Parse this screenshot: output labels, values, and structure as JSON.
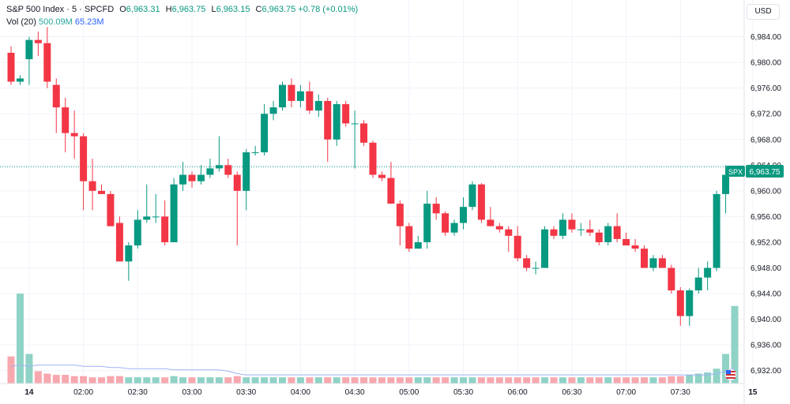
{
  "legend": {
    "symbol": "S&P 500 Index · 5 · SPCFD",
    "o_label": "O",
    "o_value": "6,963.31",
    "h_label": "H",
    "h_value": "6,963.75",
    "l_label": "L",
    "l_value": "6,963.15",
    "c_label": "C",
    "c_value": "6,963.75",
    "change": "+0.78 (+0.01%)",
    "vol_label": "Vol (20)",
    "vol_value": "500.09M",
    "vol_ma_value": "65.23M"
  },
  "currency": "USD",
  "colors": {
    "up": "#089981",
    "down": "#f23645",
    "vol_up": "#8fd2c6",
    "vol_down": "#f7a8ae",
    "vol_ma": "#9fb4f5",
    "grid": "#f0f3fa"
  },
  "chart_data": {
    "type": "candlestick",
    "interval": "5",
    "ylim": [
      6930,
      6988
    ],
    "y_ticks": [
      "6,932.00",
      "6,936.00",
      "6,940.00",
      "6,944.00",
      "6,948.00",
      "6,952.00",
      "6,956.00",
      "6,960.00",
      "6,964.00",
      "6,968.00",
      "6,972.00",
      "6,976.00",
      "6,980.00",
      "6,984.00"
    ],
    "x_ticks": [
      {
        "i": 2,
        "label": "14"
      },
      {
        "i": 8,
        "label": "02:00"
      },
      {
        "i": 14,
        "label": "02:30"
      },
      {
        "i": 20,
        "label": "03:00"
      },
      {
        "i": 26,
        "label": "03:30"
      },
      {
        "i": 32,
        "label": "04:00"
      },
      {
        "i": 38,
        "label": "04:30"
      },
      {
        "i": 44,
        "label": "05:00"
      },
      {
        "i": 50,
        "label": "05:30"
      },
      {
        "i": 56,
        "label": "06:00"
      },
      {
        "i": 62,
        "label": "06:30"
      },
      {
        "i": 68,
        "label": "07:00"
      },
      {
        "i": 74,
        "label": "07:30"
      },
      {
        "i": 82,
        "label": "15"
      }
    ],
    "last_price": {
      "symbol": "SPX",
      "value": "6,963.75",
      "price": 6963.75
    },
    "candles": [
      {
        "o": 6981.5,
        "h": 6982.5,
        "l": 6976.5,
        "c": 6977
      },
      {
        "o": 6977,
        "h": 6978,
        "l": 6976.5,
        "c": 6977.5
      },
      {
        "o": 6980.5,
        "h": 6984,
        "l": 6976.5,
        "c": 6983.5
      },
      {
        "o": 6983.5,
        "h": 6984.8,
        "l": 6981,
        "c": 6983
      },
      {
        "o": 6983,
        "h": 6985.5,
        "l": 6976,
        "c": 6977
      },
      {
        "o": 6976.5,
        "h": 6977.5,
        "l": 6969,
        "c": 6973
      },
      {
        "o": 6973,
        "h": 6974.5,
        "l": 6966,
        "c": 6969
      },
      {
        "o": 6969,
        "h": 6972.5,
        "l": 6965,
        "c": 6968.5
      },
      {
        "o": 6968.5,
        "h": 6969,
        "l": 6957,
        "c": 6961.5
      },
      {
        "o": 6961.5,
        "h": 6965,
        "l": 6957,
        "c": 6960
      },
      {
        "o": 6960,
        "h": 6961,
        "l": 6959.5,
        "c": 6959.5
      },
      {
        "o": 6959.5,
        "h": 6960,
        "l": 6954.5,
        "c": 6954.5
      },
      {
        "o": 6955,
        "h": 6956,
        "l": 6949,
        "c": 6949
      },
      {
        "o": 6949,
        "h": 6952,
        "l": 6946,
        "c": 6951.5
      },
      {
        "o": 6951.5,
        "h": 6957,
        "l": 6951,
        "c": 6955.5
      },
      {
        "o": 6955.5,
        "h": 6961,
        "l": 6955,
        "c": 6956
      },
      {
        "o": 6956,
        "h": 6959.5,
        "l": 6955,
        "c": 6956
      },
      {
        "o": 6956,
        "h": 6958.5,
        "l": 6951.5,
        "c": 6952
      },
      {
        "o": 6952,
        "h": 6962,
        "l": 6952,
        "c": 6961
      },
      {
        "o": 6961,
        "h": 6964.5,
        "l": 6960,
        "c": 6962.5
      },
      {
        "o": 6962.5,
        "h": 6963,
        "l": 6960.5,
        "c": 6961.5
      },
      {
        "o": 6961.5,
        "h": 6964,
        "l": 6961,
        "c": 6962.5
      },
      {
        "o": 6962.5,
        "h": 6965,
        "l": 6962,
        "c": 6963.5
      },
      {
        "o": 6963.5,
        "h": 6968.5,
        "l": 6963,
        "c": 6964
      },
      {
        "o": 6964,
        "h": 6965,
        "l": 6962,
        "c": 6962.5
      },
      {
        "o": 6962.5,
        "h": 6963,
        "l": 6951.5,
        "c": 6960
      },
      {
        "o": 6960,
        "h": 6966.5,
        "l": 6957,
        "c": 6966
      },
      {
        "o": 6966,
        "h": 6967,
        "l": 6965.5,
        "c": 6966
      },
      {
        "o": 6966,
        "h": 6973.5,
        "l": 6965.5,
        "c": 6972
      },
      {
        "o": 6972,
        "h": 6974,
        "l": 6971,
        "c": 6973
      },
      {
        "o": 6973,
        "h": 6977,
        "l": 6972.5,
        "c": 6976.5
      },
      {
        "o": 6976.5,
        "h": 6977.5,
        "l": 6973,
        "c": 6974
      },
      {
        "o": 6974,
        "h": 6976.5,
        "l": 6973,
        "c": 6975.5
      },
      {
        "o": 6975.5,
        "h": 6977,
        "l": 6972,
        "c": 6972.5
      },
      {
        "o": 6972.5,
        "h": 6975,
        "l": 6971.5,
        "c": 6974
      },
      {
        "o": 6974,
        "h": 6974.5,
        "l": 6964.5,
        "c": 6968
      },
      {
        "o": 6968,
        "h": 6974,
        "l": 6967,
        "c": 6973.5
      },
      {
        "o": 6973.5,
        "h": 6974,
        "l": 6970,
        "c": 6970.5
      },
      {
        "o": 6970.5,
        "h": 6972.5,
        "l": 6963.5,
        "c": 6970.5
      },
      {
        "o": 6970.5,
        "h": 6971,
        "l": 6967,
        "c": 6967.5
      },
      {
        "o": 6967.5,
        "h": 6967.8,
        "l": 6962,
        "c": 6962.5
      },
      {
        "o": 6962.5,
        "h": 6963,
        "l": 6961.5,
        "c": 6962
      },
      {
        "o": 6962,
        "h": 6964.5,
        "l": 6958,
        "c": 6958
      },
      {
        "o": 6958,
        "h": 6958.5,
        "l": 6951.5,
        "c": 6954.5
      },
      {
        "o": 6954.5,
        "h": 6955,
        "l": 6950.5,
        "c": 6951
      },
      {
        "o": 6951,
        "h": 6953,
        "l": 6951,
        "c": 6952
      },
      {
        "o": 6952,
        "h": 6960,
        "l": 6951,
        "c": 6958
      },
      {
        "o": 6958,
        "h": 6959,
        "l": 6955.5,
        "c": 6956.5
      },
      {
        "o": 6956.5,
        "h": 6956.8,
        "l": 6953,
        "c": 6953.5
      },
      {
        "o": 6953.5,
        "h": 6955.5,
        "l": 6953,
        "c": 6955
      },
      {
        "o": 6955,
        "h": 6959,
        "l": 6954,
        "c": 6957.5
      },
      {
        "o": 6957.5,
        "h": 6961.5,
        "l": 6957,
        "c": 6961
      },
      {
        "o": 6961,
        "h": 6961.2,
        "l": 6955,
        "c": 6955.5
      },
      {
        "o": 6955.5,
        "h": 6957.5,
        "l": 6954.5,
        "c": 6954.5
      },
      {
        "o": 6954.5,
        "h": 6955,
        "l": 6953.5,
        "c": 6954
      },
      {
        "o": 6954,
        "h": 6954.5,
        "l": 6950.5,
        "c": 6953
      },
      {
        "o": 6953,
        "h": 6954.5,
        "l": 6949,
        "c": 6949.5
      },
      {
        "o": 6949.5,
        "h": 6950,
        "l": 6947.5,
        "c": 6948
      },
      {
        "o": 6948,
        "h": 6949,
        "l": 6947,
        "c": 6948
      },
      {
        "o": 6948,
        "h": 6954.5,
        "l": 6948,
        "c": 6954
      },
      {
        "o": 6954,
        "h": 6954.5,
        "l": 6952.5,
        "c": 6953
      },
      {
        "o": 6953,
        "h": 6956.5,
        "l": 6952.5,
        "c": 6955.5
      },
      {
        "o": 6955.5,
        "h": 6956.5,
        "l": 6953.5,
        "c": 6954
      },
      {
        "o": 6954,
        "h": 6955,
        "l": 6953,
        "c": 6954
      },
      {
        "o": 6954,
        "h": 6955.5,
        "l": 6953,
        "c": 6953.5
      },
      {
        "o": 6953.5,
        "h": 6954,
        "l": 6951.5,
        "c": 6952
      },
      {
        "o": 6952,
        "h": 6955,
        "l": 6951.5,
        "c": 6954.5
      },
      {
        "o": 6954.5,
        "h": 6956.5,
        "l": 6952,
        "c": 6952.5
      },
      {
        "o": 6952.5,
        "h": 6953.5,
        "l": 6951.5,
        "c": 6951.5
      },
      {
        "o": 6951.5,
        "h": 6952.5,
        "l": 6950.5,
        "c": 6951
      },
      {
        "o": 6951,
        "h": 6951.5,
        "l": 6948,
        "c": 6948
      },
      {
        "o": 6948,
        "h": 6950,
        "l": 6947.5,
        "c": 6949.5
      },
      {
        "o": 6949.5,
        "h": 6950,
        "l": 6948,
        "c": 6948
      },
      {
        "o": 6948,
        "h": 6948.5,
        "l": 6944,
        "c": 6944.5
      },
      {
        "o": 6944.5,
        "h": 6945,
        "l": 6939,
        "c": 6940.5
      },
      {
        "o": 6940.5,
        "h": 6944.8,
        "l": 6939,
        "c": 6944.5
      },
      {
        "o": 6944.5,
        "h": 6948,
        "l": 6944,
        "c": 6946.5
      },
      {
        "o": 6946.5,
        "h": 6949,
        "l": 6944.5,
        "c": 6948
      },
      {
        "o": 6948,
        "h": 6960,
        "l": 6947.5,
        "c": 6959.5
      },
      {
        "o": 6959.5,
        "h": 6964,
        "l": 6956.5,
        "c": 6962.5
      },
      {
        "o": 6963.31,
        "h": 6963.75,
        "l": 6963.15,
        "c": 6963.75
      }
    ],
    "volume": [
      {
        "v": 0.22,
        "up": false
      },
      {
        "v": 0.73,
        "up": true
      },
      {
        "v": 0.24,
        "up": true
      },
      {
        "v": 0.1,
        "up": false
      },
      {
        "v": 0.08,
        "up": false
      },
      {
        "v": 0.07,
        "up": false
      },
      {
        "v": 0.07,
        "up": false
      },
      {
        "v": 0.06,
        "up": false
      },
      {
        "v": 0.06,
        "up": false
      },
      {
        "v": 0.05,
        "up": false
      },
      {
        "v": 0.05,
        "up": false
      },
      {
        "v": 0.06,
        "up": false
      },
      {
        "v": 0.06,
        "up": false
      },
      {
        "v": 0.05,
        "up": true
      },
      {
        "v": 0.05,
        "up": true
      },
      {
        "v": 0.05,
        "up": true
      },
      {
        "v": 0.05,
        "up": true
      },
      {
        "v": 0.05,
        "up": false
      },
      {
        "v": 0.06,
        "up": true
      },
      {
        "v": 0.05,
        "up": true
      },
      {
        "v": 0.05,
        "up": false
      },
      {
        "v": 0.05,
        "up": true
      },
      {
        "v": 0.05,
        "up": true
      },
      {
        "v": 0.05,
        "up": true
      },
      {
        "v": 0.05,
        "up": false
      },
      {
        "v": 0.06,
        "up": false
      },
      {
        "v": 0.05,
        "up": true
      },
      {
        "v": 0.05,
        "up": true
      },
      {
        "v": 0.05,
        "up": true
      },
      {
        "v": 0.05,
        "up": true
      },
      {
        "v": 0.05,
        "up": true
      },
      {
        "v": 0.05,
        "up": false
      },
      {
        "v": 0.05,
        "up": true
      },
      {
        "v": 0.05,
        "up": false
      },
      {
        "v": 0.05,
        "up": true
      },
      {
        "v": 0.05,
        "up": false
      },
      {
        "v": 0.05,
        "up": true
      },
      {
        "v": 0.05,
        "up": false
      },
      {
        "v": 0.05,
        "up": false
      },
      {
        "v": 0.05,
        "up": false
      },
      {
        "v": 0.05,
        "up": false
      },
      {
        "v": 0.05,
        "up": false
      },
      {
        "v": 0.05,
        "up": false
      },
      {
        "v": 0.05,
        "up": false
      },
      {
        "v": 0.05,
        "up": false
      },
      {
        "v": 0.05,
        "up": true
      },
      {
        "v": 0.05,
        "up": true
      },
      {
        "v": 0.05,
        "up": false
      },
      {
        "v": 0.05,
        "up": false
      },
      {
        "v": 0.05,
        "up": true
      },
      {
        "v": 0.05,
        "up": true
      },
      {
        "v": 0.05,
        "up": true
      },
      {
        "v": 0.05,
        "up": false
      },
      {
        "v": 0.05,
        "up": false
      },
      {
        "v": 0.05,
        "up": false
      },
      {
        "v": 0.05,
        "up": false
      },
      {
        "v": 0.05,
        "up": false
      },
      {
        "v": 0.05,
        "up": false
      },
      {
        "v": 0.05,
        "up": false
      },
      {
        "v": 0.05,
        "up": true
      },
      {
        "v": 0.05,
        "up": false
      },
      {
        "v": 0.05,
        "up": true
      },
      {
        "v": 0.05,
        "up": false
      },
      {
        "v": 0.05,
        "up": true
      },
      {
        "v": 0.05,
        "up": false
      },
      {
        "v": 0.05,
        "up": false
      },
      {
        "v": 0.05,
        "up": true
      },
      {
        "v": 0.05,
        "up": false
      },
      {
        "v": 0.05,
        "up": false
      },
      {
        "v": 0.05,
        "up": false
      },
      {
        "v": 0.05,
        "up": false
      },
      {
        "v": 0.05,
        "up": true
      },
      {
        "v": 0.05,
        "up": false
      },
      {
        "v": 0.06,
        "up": false
      },
      {
        "v": 0.06,
        "up": false
      },
      {
        "v": 0.07,
        "up": true
      },
      {
        "v": 0.08,
        "up": true
      },
      {
        "v": 0.09,
        "up": true
      },
      {
        "v": 0.12,
        "up": true
      },
      {
        "v": 0.24,
        "up": true
      },
      {
        "v": 0.63,
        "up": true
      }
    ],
    "volume_ma": [
      0.14,
      0.15,
      0.14,
      0.15,
      0.15,
      0.15,
      0.15,
      0.15,
      0.14,
      0.14,
      0.14,
      0.13,
      0.13,
      0.12,
      0.12,
      0.12,
      0.12,
      0.12,
      0.11,
      0.11,
      0.11,
      0.11,
      0.11,
      0.11,
      0.1,
      0.08,
      0.07,
      0.07,
      0.07,
      0.07,
      0.07,
      0.07,
      0.07,
      0.07,
      0.07,
      0.07,
      0.07,
      0.07,
      0.07,
      0.07,
      0.07,
      0.07,
      0.07,
      0.07,
      0.07,
      0.07,
      0.07,
      0.07,
      0.07,
      0.07,
      0.07,
      0.07,
      0.07,
      0.07,
      0.07,
      0.07,
      0.07,
      0.07,
      0.07,
      0.07,
      0.07,
      0.07,
      0.07,
      0.07,
      0.07,
      0.07,
      0.07,
      0.07,
      0.07,
      0.07,
      0.07,
      0.07,
      0.07,
      0.07,
      0.07,
      0.07,
      0.07,
      0.07,
      0.08,
      0.1,
      0.13
    ]
  }
}
